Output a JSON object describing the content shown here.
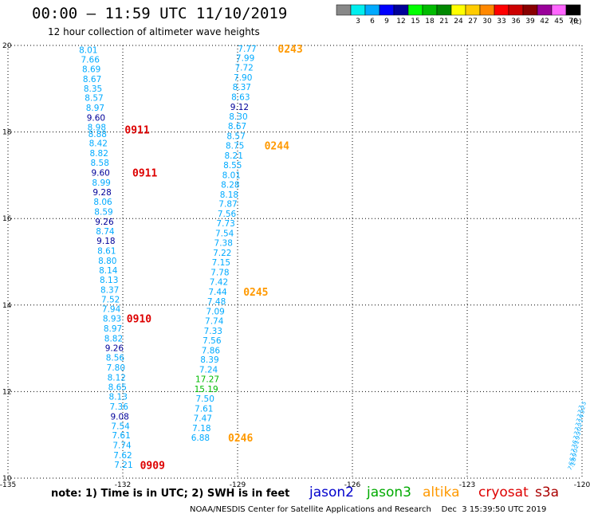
{
  "title": "00:00 – 11:59 UTC 11/10/2019",
  "subtitle": "12 hour collection of altimeter wave heights",
  "note": "note: 1) Time is in UTC; 2) SWH is in feet",
  "credit": "NOAA/NESDIS Center for Satellite Applications and Research    Dec  3 15:39:50 UTC 2019",
  "satellites": [
    {
      "name": "jason2",
      "color": "#0000cc"
    },
    {
      "name": "jason3",
      "color": "#00aa00"
    },
    {
      "name": "altika",
      "color": "#ff9900"
    },
    {
      "name": "cryosat",
      "color": "#dd0000"
    },
    {
      "name": "s3a",
      "color": "#aa0000"
    }
  ],
  "legend": {
    "unit": "(ft)",
    "bins": [
      {
        "label": "",
        "color": "#888888"
      },
      {
        "label": "3",
        "color": "#00eeee"
      },
      {
        "label": "6",
        "color": "#00aaff"
      },
      {
        "label": "9",
        "color": "#0000ff"
      },
      {
        "label": "12",
        "color": "#000099"
      },
      {
        "label": "15",
        "color": "#00ff00"
      },
      {
        "label": "18",
        "color": "#00bb00"
      },
      {
        "label": "21",
        "color": "#008800"
      },
      {
        "label": "24",
        "color": "#ffff00"
      },
      {
        "label": "27",
        "color": "#ffcc00"
      },
      {
        "label": "30",
        "color": "#ff8800"
      },
      {
        "label": "33",
        "color": "#ff0000"
      },
      {
        "label": "36",
        "color": "#cc0000"
      },
      {
        "label": "39",
        "color": "#880000"
      },
      {
        "label": "42",
        "color": "#990099"
      },
      {
        "label": "45",
        "color": "#ff66ff"
      },
      {
        "label": "70",
        "color": "#000000"
      }
    ]
  },
  "chart_data": {
    "type": "scatter",
    "xlim": [
      -135,
      -120
    ],
    "ylim": [
      10,
      20
    ],
    "xticks": [
      {
        "value": -135,
        "label": "-135"
      },
      {
        "value": -132,
        "label": "-132"
      },
      {
        "value": -129,
        "label": "-129"
      },
      {
        "value": -126,
        "label": "-126"
      },
      {
        "value": -123,
        "label": "-123"
      },
      {
        "value": -120,
        "label": "-120"
      }
    ],
    "yticks": [
      {
        "value": 20,
        "label": "20"
      },
      {
        "value": 18,
        "label": "18"
      },
      {
        "value": 16,
        "label": "16"
      },
      {
        "value": 14,
        "label": "14"
      },
      {
        "value": 12,
        "label": "12"
      },
      {
        "value": 10,
        "label": "10"
      }
    ],
    "grid": true,
    "points": [
      {
        "lon": -132.9,
        "lat": 19.9,
        "label": "8.01",
        "color": "#00aaff"
      },
      {
        "lon": -132.85,
        "lat": 19.68,
        "label": "7.66",
        "color": "#00aaff"
      },
      {
        "lon": -132.82,
        "lat": 19.46,
        "label": "8.69",
        "color": "#00aaff"
      },
      {
        "lon": -132.8,
        "lat": 19.23,
        "label": "8.67",
        "color": "#00aaff"
      },
      {
        "lon": -132.78,
        "lat": 19.01,
        "label": "8.35",
        "color": "#00aaff"
      },
      {
        "lon": -132.75,
        "lat": 18.79,
        "label": "8.57",
        "color": "#00aaff"
      },
      {
        "lon": -132.72,
        "lat": 18.56,
        "label": "8.97",
        "color": "#00aaff"
      },
      {
        "lon": -132.7,
        "lat": 18.33,
        "label": "9.60",
        "color": "#000099"
      },
      {
        "lon": -132.68,
        "lat": 18.11,
        "label": "8.98",
        "color": "#00aaff"
      },
      {
        "lon": -132.66,
        "lat": 17.96,
        "label": "8.88",
        "color": "#00aaff"
      },
      {
        "lon": -132.64,
        "lat": 17.74,
        "label": "8.42",
        "color": "#00aaff"
      },
      {
        "lon": -132.62,
        "lat": 17.51,
        "label": "8.82",
        "color": "#00aaff"
      },
      {
        "lon": -132.6,
        "lat": 17.29,
        "label": "8.58",
        "color": "#00aaff"
      },
      {
        "lon": -132.58,
        "lat": 17.06,
        "label": "9.60",
        "color": "#000099"
      },
      {
        "lon": -132.56,
        "lat": 16.83,
        "label": "8.99",
        "color": "#00aaff"
      },
      {
        "lon": -132.54,
        "lat": 16.61,
        "label": "9.28",
        "color": "#000099"
      },
      {
        "lon": -132.52,
        "lat": 16.39,
        "label": "8.06",
        "color": "#00aaff"
      },
      {
        "lon": -132.5,
        "lat": 16.16,
        "label": "8.59",
        "color": "#00aaff"
      },
      {
        "lon": -132.48,
        "lat": 15.93,
        "label": "9.26",
        "color": "#000099"
      },
      {
        "lon": -132.46,
        "lat": 15.71,
        "label": "8.74",
        "color": "#00aaff"
      },
      {
        "lon": -132.44,
        "lat": 15.49,
        "label": "9.18",
        "color": "#000099"
      },
      {
        "lon": -132.42,
        "lat": 15.26,
        "label": "8.61",
        "color": "#00aaff"
      },
      {
        "lon": -132.4,
        "lat": 15.03,
        "label": "8.80",
        "color": "#00aaff"
      },
      {
        "lon": -132.38,
        "lat": 14.81,
        "label": "8.14",
        "color": "#00aaff"
      },
      {
        "lon": -132.36,
        "lat": 14.59,
        "label": "8.13",
        "color": "#00aaff"
      },
      {
        "lon": -132.34,
        "lat": 14.36,
        "label": "8.37",
        "color": "#00aaff"
      },
      {
        "lon": -132.32,
        "lat": 14.13,
        "label": "7.52",
        "color": "#00aaff"
      },
      {
        "lon": -132.3,
        "lat": 13.91,
        "label": "7.94",
        "color": "#00aaff"
      },
      {
        "lon": -132.28,
        "lat": 13.69,
        "label": "8.93",
        "color": "#00aaff"
      },
      {
        "lon": -132.26,
        "lat": 13.46,
        "label": "8.97",
        "color": "#00aaff"
      },
      {
        "lon": -132.24,
        "lat": 13.23,
        "label": "8.82",
        "color": "#00aaff"
      },
      {
        "lon": -132.22,
        "lat": 13.01,
        "label": "9.26",
        "color": "#000099"
      },
      {
        "lon": -132.2,
        "lat": 12.79,
        "label": "8.56",
        "color": "#00aaff"
      },
      {
        "lon": -132.18,
        "lat": 12.56,
        "label": "7.80",
        "color": "#00aaff"
      },
      {
        "lon": -132.16,
        "lat": 12.33,
        "label": "8.12",
        "color": "#00aaff"
      },
      {
        "lon": -132.14,
        "lat": 12.11,
        "label": "8.65",
        "color": "#00aaff"
      },
      {
        "lon": -132.12,
        "lat": 11.89,
        "label": "8.13",
        "color": "#00aaff"
      },
      {
        "lon": -132.1,
        "lat": 11.66,
        "label": "7.36",
        "color": "#00aaff"
      },
      {
        "lon": -132.08,
        "lat": 11.43,
        "label": "9.08",
        "color": "#000099"
      },
      {
        "lon": -132.06,
        "lat": 11.21,
        "label": "7.54",
        "color": "#00aaff"
      },
      {
        "lon": -132.04,
        "lat": 10.99,
        "label": "7.61",
        "color": "#00aaff"
      },
      {
        "lon": -132.02,
        "lat": 10.76,
        "label": "7.74",
        "color": "#00aaff"
      },
      {
        "lon": -132.0,
        "lat": 10.53,
        "label": "7.62",
        "color": "#00aaff"
      },
      {
        "lon": -131.98,
        "lat": 10.31,
        "label": "7.21",
        "color": "#00aaff"
      },
      {
        "lon": -128.75,
        "lat": 19.93,
        "label": "7.77",
        "color": "#00aaff"
      },
      {
        "lon": -128.8,
        "lat": 19.71,
        "label": "7.99",
        "color": "#00aaff"
      },
      {
        "lon": -128.83,
        "lat": 19.49,
        "label": "7.72",
        "color": "#00aaff"
      },
      {
        "lon": -128.86,
        "lat": 19.26,
        "label": "7.90",
        "color": "#00aaff"
      },
      {
        "lon": -128.89,
        "lat": 19.04,
        "label": "8.37",
        "color": "#00aaff"
      },
      {
        "lon": -128.92,
        "lat": 18.81,
        "label": "8.63",
        "color": "#00aaff"
      },
      {
        "lon": -128.95,
        "lat": 18.58,
        "label": "9.12",
        "color": "#000099"
      },
      {
        "lon": -128.98,
        "lat": 18.36,
        "label": "8.30",
        "color": "#00aaff"
      },
      {
        "lon": -129.01,
        "lat": 18.14,
        "label": "8.67",
        "color": "#00aaff"
      },
      {
        "lon": -129.04,
        "lat": 17.91,
        "label": "8.57",
        "color": "#00aaff"
      },
      {
        "lon": -129.07,
        "lat": 17.69,
        "label": "8.75",
        "color": "#00aaff"
      },
      {
        "lon": -129.1,
        "lat": 17.46,
        "label": "8.21",
        "color": "#00aaff"
      },
      {
        "lon": -129.13,
        "lat": 17.24,
        "label": "8.55",
        "color": "#00aaff"
      },
      {
        "lon": -129.16,
        "lat": 17.01,
        "label": "8.01",
        "color": "#00aaff"
      },
      {
        "lon": -129.19,
        "lat": 16.79,
        "label": "8.28",
        "color": "#00aaff"
      },
      {
        "lon": -129.22,
        "lat": 16.56,
        "label": "8.18",
        "color": "#00aaff"
      },
      {
        "lon": -129.25,
        "lat": 16.34,
        "label": "7.87",
        "color": "#00aaff"
      },
      {
        "lon": -129.28,
        "lat": 16.11,
        "label": "7.56",
        "color": "#00aaff"
      },
      {
        "lon": -129.31,
        "lat": 15.89,
        "label": "7.73",
        "color": "#00aaff"
      },
      {
        "lon": -129.34,
        "lat": 15.66,
        "label": "7.54",
        "color": "#00aaff"
      },
      {
        "lon": -129.37,
        "lat": 15.44,
        "label": "7.38",
        "color": "#00aaff"
      },
      {
        "lon": -129.4,
        "lat": 15.21,
        "label": "7.22",
        "color": "#00aaff"
      },
      {
        "lon": -129.43,
        "lat": 14.99,
        "label": "7.15",
        "color": "#00aaff"
      },
      {
        "lon": -129.46,
        "lat": 14.76,
        "label": "7.78",
        "color": "#00aaff"
      },
      {
        "lon": -129.49,
        "lat": 14.54,
        "label": "7.42",
        "color": "#00aaff"
      },
      {
        "lon": -129.52,
        "lat": 14.31,
        "label": "7.44",
        "color": "#00aaff"
      },
      {
        "lon": -129.55,
        "lat": 14.09,
        "label": "7.48",
        "color": "#00aaff"
      },
      {
        "lon": -129.58,
        "lat": 13.86,
        "label": "7.09",
        "color": "#00aaff"
      },
      {
        "lon": -129.61,
        "lat": 13.64,
        "label": "7.74",
        "color": "#00aaff"
      },
      {
        "lon": -129.64,
        "lat": 13.41,
        "label": "7.33",
        "color": "#00aaff"
      },
      {
        "lon": -129.67,
        "lat": 13.19,
        "label": "7.56",
        "color": "#00aaff"
      },
      {
        "lon": -129.7,
        "lat": 12.96,
        "label": "7.86",
        "color": "#00aaff"
      },
      {
        "lon": -129.73,
        "lat": 12.74,
        "label": "8.39",
        "color": "#00aaff"
      },
      {
        "lon": -129.76,
        "lat": 12.51,
        "label": "7.24",
        "color": "#00aaff"
      },
      {
        "lon": -129.79,
        "lat": 12.29,
        "label": "17.27",
        "color": "#00bb00"
      },
      {
        "lon": -129.82,
        "lat": 12.06,
        "label": "15.19",
        "color": "#00bb00"
      },
      {
        "lon": -129.85,
        "lat": 11.84,
        "label": "7.50",
        "color": "#00aaff"
      },
      {
        "lon": -129.88,
        "lat": 11.61,
        "label": "7.61",
        "color": "#00aaff"
      },
      {
        "lon": -129.91,
        "lat": 11.39,
        "label": "7.47",
        "color": "#00aaff"
      },
      {
        "lon": -129.94,
        "lat": 11.16,
        "label": "7.18",
        "color": "#00aaff"
      },
      {
        "lon": -129.97,
        "lat": 10.94,
        "label": "6.88",
        "color": "#00aaff"
      }
    ],
    "time_labels": [
      {
        "lon": -131.95,
        "lat": 18.06,
        "label": "0911",
        "color": "#dd0000"
      },
      {
        "lon": -131.75,
        "lat": 17.06,
        "label": "0911",
        "color": "#dd0000"
      },
      {
        "lon": -131.9,
        "lat": 13.69,
        "label": "0910",
        "color": "#dd0000"
      },
      {
        "lon": -131.55,
        "lat": 10.3,
        "label": "0909",
        "color": "#dd0000"
      },
      {
        "lon": -127.95,
        "lat": 19.93,
        "label": "0243",
        "color": "#ff9900"
      },
      {
        "lon": -128.3,
        "lat": 17.69,
        "label": "0244",
        "color": "#ff9900"
      },
      {
        "lon": -128.85,
        "lat": 14.31,
        "label": "0245",
        "color": "#ff9900"
      },
      {
        "lon": -129.25,
        "lat": 10.94,
        "label": "0246",
        "color": "#ff9900"
      }
    ],
    "edge_points": [
      {
        "lon": -120.3,
        "lat": 10.3,
        "label": "7.1",
        "color": "#00aaff"
      },
      {
        "lon": -120.28,
        "lat": 10.4,
        "label": "6.8",
        "color": "#00aaff"
      },
      {
        "lon": -120.26,
        "lat": 10.5,
        "label": "6.9",
        "color": "#00aaff"
      },
      {
        "lon": -120.24,
        "lat": 10.6,
        "label": "7.0",
        "color": "#00aaff"
      },
      {
        "lon": -120.22,
        "lat": 10.7,
        "label": "7.2",
        "color": "#00aaff"
      },
      {
        "lon": -120.2,
        "lat": 10.8,
        "label": "7.1",
        "color": "#00aaff"
      },
      {
        "lon": -120.18,
        "lat": 10.9,
        "label": "6.9",
        "color": "#00aaff"
      },
      {
        "lon": -120.16,
        "lat": 11.0,
        "label": "7.3",
        "color": "#00aaff"
      },
      {
        "lon": -120.14,
        "lat": 11.1,
        "label": "7.0",
        "color": "#00aaff"
      },
      {
        "lon": -120.12,
        "lat": 11.2,
        "label": "7.2",
        "color": "#00aaff"
      },
      {
        "lon": -120.1,
        "lat": 11.3,
        "label": "7.1",
        "color": "#00aaff"
      },
      {
        "lon": -120.08,
        "lat": 11.4,
        "label": "7.4",
        "color": "#00aaff"
      },
      {
        "lon": -120.06,
        "lat": 11.5,
        "label": "7.3",
        "color": "#00aaff"
      },
      {
        "lon": -120.04,
        "lat": 11.6,
        "label": "7.2",
        "color": "#00aaff"
      },
      {
        "lon": -120.02,
        "lat": 11.7,
        "label": "7.5",
        "color": "#00aaff"
      }
    ]
  }
}
